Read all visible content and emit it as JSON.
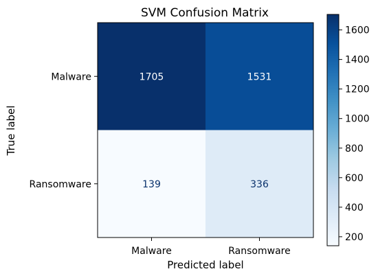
{
  "chart_data": {
    "type": "heatmap",
    "title": "SVM Confusion Matrix",
    "xlabel": "Predicted label",
    "ylabel": "True label",
    "x_categories": [
      "Malware",
      "Ransomware"
    ],
    "y_categories": [
      "Malware",
      "Ransomware"
    ],
    "values": [
      [
        1705,
        1531
      ],
      [
        139,
        336
      ]
    ],
    "colormap": "Blues",
    "colorbar": {
      "min": 139,
      "max": 1705,
      "ticks": [
        200,
        400,
        600,
        800,
        1000,
        1200,
        1400,
        1600
      ]
    },
    "cell_text_colors": {
      "dark": "#ffffff",
      "light": "#08306b"
    }
  }
}
